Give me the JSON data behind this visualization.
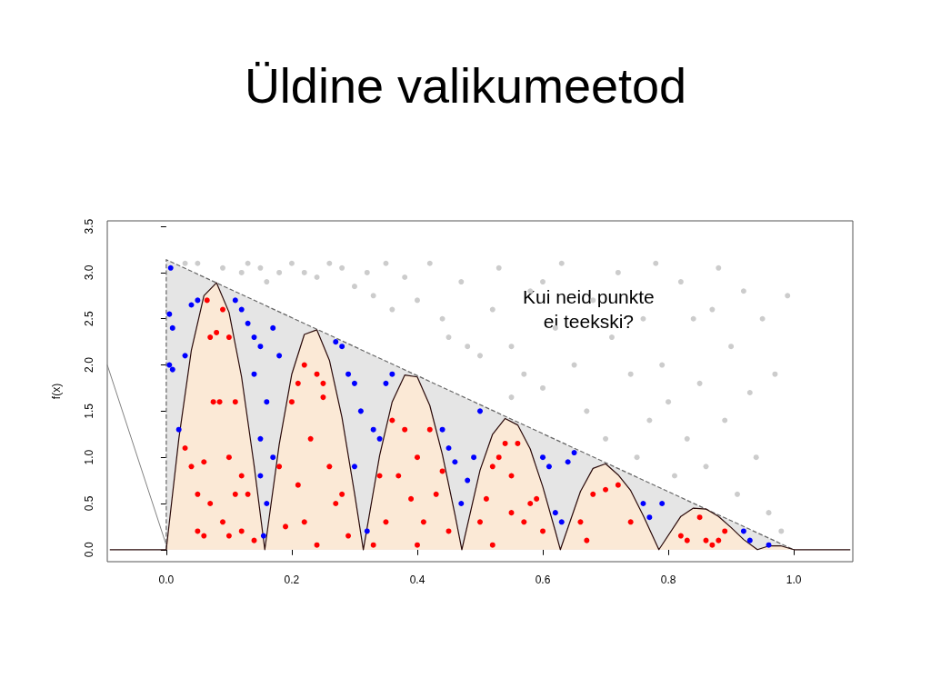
{
  "chart_data": {
    "type": "scatter",
    "title": "Üldine valikumeetod",
    "ylabel": "f(x)",
    "annotations": [
      "Kui neid punkte\nei teekski?"
    ],
    "xlim": [
      -0.094,
      1.094
    ],
    "ylim": [
      -0.13,
      3.56
    ],
    "xticks": [
      {
        "value": 0,
        "label": "0.0"
      },
      {
        "value": 0.2,
        "label": "0.2"
      },
      {
        "value": 0.4,
        "label": "0.4"
      },
      {
        "value": 0.6,
        "label": "0.6"
      },
      {
        "value": 0.8,
        "label": "0.8"
      },
      {
        "value": 1,
        "label": "1.0"
      }
    ],
    "yticks": [
      {
        "value": 0,
        "label": "0.0"
      },
      {
        "value": 0.5,
        "label": "0.5"
      },
      {
        "value": 1,
        "label": "1.0"
      },
      {
        "value": 1.5,
        "label": "1.5"
      },
      {
        "value": 2,
        "label": "2.0"
      },
      {
        "value": 2.5,
        "label": "2.5"
      },
      {
        "value": 3,
        "label": "3.0"
      },
      {
        "value": 3.5,
        "label": "3.5"
      }
    ],
    "grid": false,
    "series": [
      {
        "type": "area",
        "color": "#e5e5e5",
        "line_style": "dashed",
        "marker": "none",
        "x": [
          0,
          0,
          1
        ],
        "values": [
          0,
          3.14,
          0
        ]
      },
      {
        "type": "area",
        "color": "#fbe9d6",
        "line_style": "solid",
        "marker": "none",
        "x": [
          -0.09,
          0,
          0.02,
          0.04,
          0.06,
          0.08,
          0.1,
          0.12,
          0.14,
          0.157,
          0.18,
          0.2,
          0.22,
          0.24,
          0.26,
          0.28,
          0.3,
          0.314,
          0.34,
          0.36,
          0.38,
          0.4,
          0.42,
          0.44,
          0.46,
          0.471,
          0.5,
          0.52,
          0.54,
          0.56,
          0.58,
          0.6,
          0.62,
          0.628,
          0.66,
          0.68,
          0.7,
          0.72,
          0.74,
          0.76,
          0.785,
          0.82,
          0.84,
          0.86,
          0.88,
          0.9,
          0.92,
          0.942,
          0.96,
          0.98,
          1,
          1.09
        ],
        "values": [
          0,
          0,
          1.2,
          2.16,
          2.75,
          2.89,
          2.57,
          1.87,
          0.91,
          0,
          1.14,
          1.9,
          2.33,
          2.38,
          2.05,
          1.43,
          0.61,
          0,
          1.02,
          1.6,
          1.89,
          1.87,
          1.56,
          1.03,
          0.38,
          0,
          0.86,
          1.25,
          1.42,
          1.35,
          1.09,
          0.68,
          0.2,
          0,
          0.63,
          0.88,
          0.93,
          0.81,
          0.64,
          0.37,
          0,
          0.36,
          0.45,
          0.44,
          0.36,
          0.24,
          0.11,
          0,
          0.04,
          0.04,
          0,
          0
        ]
      },
      {
        "type": "line",
        "color": "#808080",
        "line_style": "solid",
        "marker": "none",
        "x": [
          -0.094,
          0
        ],
        "values": [
          2.0,
          0.05
        ]
      },
      {
        "type": "scatter",
        "color": "#cccccc",
        "marker": "circle",
        "x": [
          0.03,
          0.05,
          0.09,
          0.12,
          0.13,
          0.15,
          0.16,
          0.18,
          0.2,
          0.22,
          0.24,
          0.26,
          0.28,
          0.3,
          0.32,
          0.33,
          0.35,
          0.36,
          0.38,
          0.4,
          0.42,
          0.44,
          0.45,
          0.47,
          0.5,
          0.52,
          0.53,
          0.55,
          0.57,
          0.58,
          0.6,
          0.62,
          0.63,
          0.65,
          0.67,
          0.68,
          0.7,
          0.71,
          0.72,
          0.74,
          0.75,
          0.76,
          0.77,
          0.78,
          0.79,
          0.8,
          0.81,
          0.82,
          0.83,
          0.84,
          0.85,
          0.86,
          0.87,
          0.88,
          0.89,
          0.9,
          0.91,
          0.92,
          0.93,
          0.94,
          0.95,
          0.96,
          0.97,
          0.98,
          0.99,
          0.6,
          0.48,
          0.55
        ],
        "values": [
          3.1,
          3.1,
          3.05,
          3.0,
          3.1,
          3.05,
          2.9,
          3.0,
          3.1,
          3.0,
          2.95,
          3.1,
          3.05,
          2.85,
          3.0,
          2.75,
          3.1,
          2.6,
          2.95,
          2.7,
          3.1,
          2.5,
          2.3,
          2.9,
          2.1,
          2.6,
          3.05,
          2.2,
          1.9,
          2.8,
          1.75,
          2.4,
          3.1,
          2.0,
          1.5,
          2.7,
          1.2,
          2.3,
          3.0,
          1.9,
          1.0,
          2.5,
          1.4,
          3.1,
          2.0,
          1.6,
          0.8,
          2.9,
          1.2,
          2.5,
          1.8,
          0.9,
          2.6,
          3.05,
          1.4,
          2.2,
          0.6,
          2.8,
          1.7,
          1.0,
          2.5,
          0.4,
          1.9,
          0.2,
          2.75,
          2.9,
          2.2,
          1.65
        ]
      },
      {
        "type": "scatter",
        "color": "#0000ff",
        "marker": "circle",
        "x": [
          0.007,
          0.005,
          0.005,
          0.01,
          0.02,
          0.03,
          0.04,
          0.05,
          0.01,
          0.11,
          0.12,
          0.13,
          0.14,
          0.14,
          0.15,
          0.15,
          0.15,
          0.16,
          0.155,
          0.17,
          0.17,
          0.16,
          0.18,
          0.28,
          0.27,
          0.29,
          0.3,
          0.31,
          0.3,
          0.32,
          0.33,
          0.34,
          0.35,
          0.36,
          0.44,
          0.45,
          0.46,
          0.47,
          0.48,
          0.49,
          0.5,
          0.6,
          0.61,
          0.62,
          0.63,
          0.64,
          0.65,
          0.76,
          0.77,
          0.79,
          0.92,
          0.93,
          0.96
        ],
        "values": [
          3.05,
          2.55,
          2.0,
          1.95,
          1.3,
          2.1,
          2.65,
          2.7,
          2.4,
          2.7,
          2.6,
          2.45,
          2.3,
          1.9,
          2.2,
          1.2,
          0.8,
          0.5,
          0.15,
          1.0,
          2.4,
          1.6,
          2.1,
          2.2,
          2.25,
          1.9,
          1.8,
          1.5,
          0.9,
          0.2,
          1.3,
          1.2,
          1.8,
          1.9,
          1.3,
          1.1,
          0.95,
          0.5,
          0.75,
          1.0,
          1.5,
          1.0,
          0.9,
          0.4,
          0.3,
          0.95,
          1.05,
          0.5,
          0.35,
          0.5,
          0.2,
          0.1,
          0.05
        ]
      },
      {
        "type": "scatter",
        "color": "#ff0000",
        "marker": "circle",
        "x": [
          0.03,
          0.04,
          0.05,
          0.06,
          0.07,
          0.075,
          0.08,
          0.085,
          0.09,
          0.09,
          0.1,
          0.1,
          0.11,
          0.12,
          0.12,
          0.13,
          0.14,
          0.06,
          0.07,
          0.1,
          0.065,
          0.11,
          0.05,
          0.19,
          0.2,
          0.21,
          0.22,
          0.23,
          0.24,
          0.25,
          0.26,
          0.27,
          0.28,
          0.22,
          0.24,
          0.25,
          0.21,
          0.29,
          0.18,
          0.34,
          0.35,
          0.36,
          0.37,
          0.38,
          0.39,
          0.4,
          0.4,
          0.41,
          0.42,
          0.43,
          0.44,
          0.45,
          0.33,
          0.5,
          0.51,
          0.52,
          0.53,
          0.54,
          0.55,
          0.56,
          0.57,
          0.58,
          0.59,
          0.52,
          0.55,
          0.6,
          0.66,
          0.67,
          0.68,
          0.7,
          0.72,
          0.74,
          0.82,
          0.83,
          0.85,
          0.86,
          0.87,
          0.88,
          0.89
        ],
        "values": [
          1.1,
          0.9,
          0.2,
          0.95,
          2.3,
          1.6,
          2.35,
          1.6,
          2.6,
          0.3,
          1.0,
          0.15,
          1.6,
          0.8,
          0.2,
          0.6,
          0.1,
          0.15,
          0.5,
          2.3,
          2.7,
          0.6,
          0.6,
          0.25,
          1.6,
          1.8,
          2.0,
          1.2,
          1.9,
          1.65,
          0.9,
          0.5,
          0.6,
          0.3,
          0.05,
          1.8,
          0.7,
          0.15,
          0.9,
          0.8,
          0.3,
          1.4,
          0.8,
          1.3,
          0.55,
          1.0,
          0.05,
          0.3,
          1.3,
          0.6,
          0.85,
          0.2,
          0.05,
          0.3,
          0.55,
          0.9,
          1.0,
          1.15,
          0.8,
          1.15,
          0.3,
          0.5,
          0.55,
          0.05,
          0.4,
          0.2,
          0.3,
          0.1,
          0.6,
          0.65,
          0.7,
          0.3,
          0.15,
          0.1,
          0.35,
          0.1,
          0.05,
          0.1,
          0.2
        ]
      }
    ]
  }
}
